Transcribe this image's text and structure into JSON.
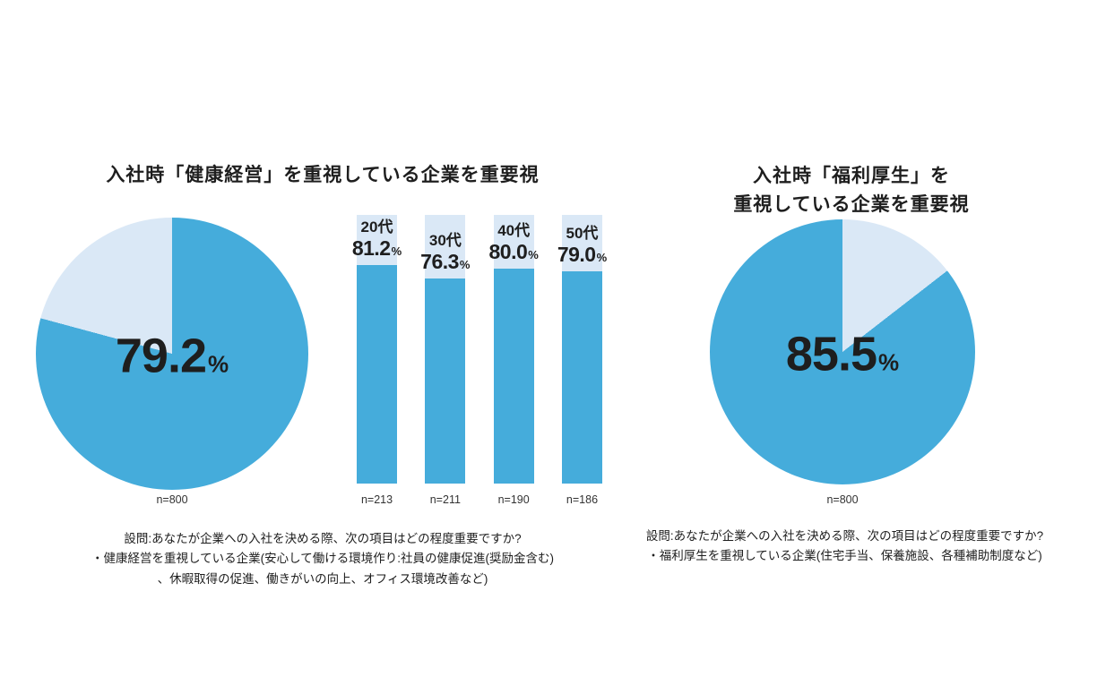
{
  "colors": {
    "primary": "#45ACDB",
    "light": "#DAE8F6",
    "text": "#1E1E1E"
  },
  "left": {
    "title": "入社時「健康経営」を重視している企業を重要視",
    "pie": {
      "value": "79.2",
      "unit": "%",
      "pct": 79.2,
      "n_label": "n=800"
    },
    "bars": [
      {
        "label": "20代",
        "value": "81.2",
        "unit": "%",
        "pct": 81.2,
        "n_label": "n=213"
      },
      {
        "label": "30代",
        "value": "76.3",
        "unit": "%",
        "pct": 76.3,
        "n_label": "n=211"
      },
      {
        "label": "40代",
        "value": "80.0",
        "unit": "%",
        "pct": 80.0,
        "n_label": "n=190"
      },
      {
        "label": "50代",
        "value": "79.0",
        "unit": "%",
        "pct": 79.0,
        "n_label": "n=186"
      }
    ],
    "footnote_lines": [
      "設問:あなたが企業への入社を決める際、次の項目はどの程度重要ですか?",
      "・健康経営を重視している企業(安心して働ける環境作り:社員の健康促進(奨励金含む)",
      "、休暇取得の促進、働きがいの向上、オフィス環境改善など)"
    ]
  },
  "right": {
    "title_lines": [
      "入社時「福利厚生」を",
      "重視している企業を重要視"
    ],
    "pie": {
      "value": "85.5",
      "unit": "%",
      "pct": 85.5,
      "n_label": "n=800"
    },
    "footnote_lines": [
      "設問:あなたが企業への入社を決める際、次の項目はどの程度重要ですか?",
      "・福利厚生を重視している企業(住宅手当、保養施設、各種補助制度など)"
    ]
  },
  "chart_data": [
    {
      "type": "pie",
      "title": "入社時「健康経営」を重視している企業を重要視",
      "values": [
        79.2,
        20.8
      ],
      "value_label": "79.2%",
      "n": "n=800",
      "colors": [
        "#45ACDB",
        "#DAE8F6"
      ],
      "start": "top",
      "direction": "clockwise-main-first"
    },
    {
      "type": "bar",
      "title": "年代別(健康経営を重視)",
      "categories": [
        "20代",
        "30代",
        "40代",
        "50代"
      ],
      "values": [
        81.2,
        76.3,
        80.0,
        79.0
      ],
      "value_labels": [
        "81.2%",
        "76.3%",
        "80.0%",
        "79.0%"
      ],
      "n": [
        "n=213",
        "n=211",
        "n=190",
        "n=186"
      ],
      "ylim": [
        0,
        100
      ],
      "grid": false,
      "bar_color": "#45ACDB",
      "remainder_color": "#DAE8F6"
    },
    {
      "type": "pie",
      "title": "入社時「福利厚生」を重視している企業を重要視",
      "values": [
        85.5,
        14.5
      ],
      "value_label": "85.5%",
      "n": "n=800",
      "colors": [
        "#45ACDB",
        "#DAE8F6"
      ],
      "start": "top",
      "direction": "clockwise-remainder-first"
    }
  ]
}
